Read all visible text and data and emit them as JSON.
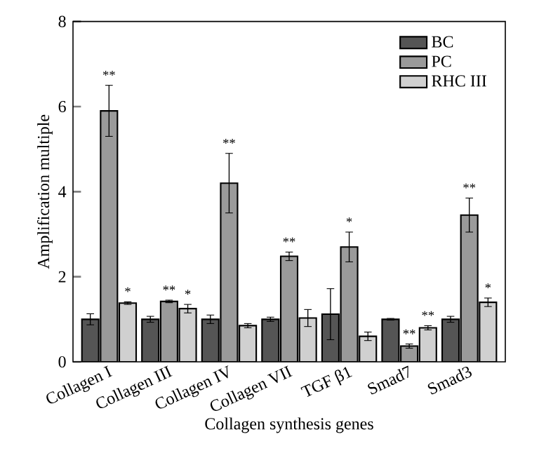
{
  "chart_data": {
    "type": "bar",
    "xlabel": "Collagen synthesis genes",
    "ylabel": "Amplification multiple",
    "categories": [
      "Collagen I",
      "Collagen III",
      "Collagen IV",
      "Collagen VII",
      "TGF β1",
      "Smad7",
      "Smad3"
    ],
    "series": [
      {
        "name": "BC",
        "color": "#555555",
        "values": [
          1.0,
          1.0,
          1.0,
          1.0,
          1.12,
          1.0,
          1.0
        ],
        "errors": [
          0.13,
          0.07,
          0.1,
          0.05,
          0.6,
          0.02,
          0.07
        ],
        "value_labels": [
          null,
          null,
          null,
          null,
          null,
          null,
          null
        ]
      },
      {
        "name": "PC",
        "color": "#9a9a9a",
        "values": [
          5.9,
          1.42,
          4.2,
          2.48,
          2.7,
          0.37,
          3.45
        ],
        "errors": [
          0.6,
          0.03,
          0.7,
          0.1,
          0.35,
          0.05,
          0.4
        ],
        "value_labels": [
          "**",
          "**",
          "**",
          "**",
          "*",
          "**",
          "**"
        ]
      },
      {
        "name": "RHC III",
        "color": "#d0d0d0",
        "values": [
          1.38,
          1.25,
          0.85,
          1.03,
          0.6,
          0.8,
          1.4
        ],
        "errors": [
          0.03,
          0.1,
          0.05,
          0.2,
          0.1,
          0.05,
          0.1
        ],
        "value_labels": [
          "*",
          "*",
          null,
          null,
          null,
          "**",
          "*"
        ]
      }
    ],
    "ylim": [
      0,
      8
    ],
    "yticks": [
      0,
      2,
      4,
      6,
      8
    ],
    "legend": "top right"
  }
}
